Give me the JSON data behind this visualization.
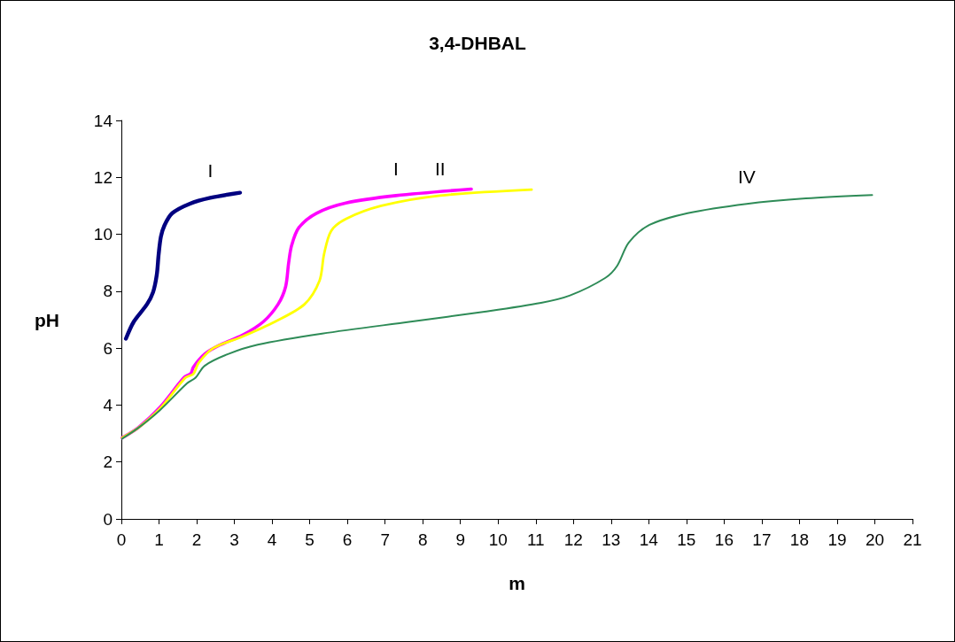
{
  "chart_data": {
    "type": "line",
    "title": "3,4-DHBAL",
    "xlabel": "m",
    "ylabel": "pH",
    "xlim": [
      0,
      21
    ],
    "xticks": [
      0,
      1,
      2,
      3,
      4,
      5,
      6,
      7,
      8,
      9,
      10,
      11,
      12,
      13,
      14,
      15,
      16,
      17,
      18,
      19,
      20,
      21
    ],
    "ylim": [
      0,
      14
    ],
    "yticks": [
      0,
      2,
      4,
      6,
      8,
      10,
      12,
      14
    ],
    "grid": false,
    "marker": "none",
    "line_style": "solid",
    "series": [
      {
        "name": "I",
        "color": "#000080",
        "x": [
          0.12,
          0.33,
          0.68,
          0.84,
          0.94,
          0.99,
          1.05,
          1.15,
          1.35,
          1.81,
          2.36,
          3.15
        ],
        "values": [
          6.33,
          6.93,
          7.54,
          7.96,
          8.58,
          9.3,
          9.92,
          10.33,
          10.74,
          11.07,
          11.28,
          11.46
        ]
      },
      {
        "name": "I",
        "color": "#ff00ff",
        "x": [
          0.02,
          0.45,
          1.03,
          1.66,
          1.85,
          1.91,
          2.21,
          2.6,
          3.22,
          3.77,
          4.16,
          4.36,
          4.44,
          4.52,
          4.71,
          5.18,
          5.96,
          7.29,
          9.29
        ],
        "values": [
          2.85,
          3.21,
          3.93,
          4.96,
          5.12,
          5.33,
          5.79,
          6.1,
          6.46,
          6.93,
          7.54,
          8.16,
          8.99,
          9.61,
          10.23,
          10.74,
          11.1,
          11.36,
          11.59
        ]
      },
      {
        "name": "II",
        "color": "#ffff00",
        "x": [
          0.02,
          0.45,
          1.03,
          1.7,
          1.91,
          2.05,
          2.44,
          3.22,
          4.08,
          4.86,
          5.26,
          5.38,
          5.57,
          5.96,
          6.9,
          8.46,
          10.89
        ],
        "values": [
          2.85,
          3.2,
          3.88,
          4.96,
          5.09,
          5.48,
          6.0,
          6.41,
          6.93,
          7.54,
          8.37,
          9.3,
          10.12,
          10.54,
          11.0,
          11.36,
          11.57
        ]
      },
      {
        "name": "IV",
        "color": "#2e8b57",
        "x": [
          0.02,
          0.45,
          1.03,
          1.74,
          1.97,
          2.21,
          2.83,
          3.62,
          5.33,
          7.68,
          9.64,
          11.14,
          11.91,
          12.85,
          13.16,
          13.47,
          14.02,
          15.03,
          16.6,
          18.17,
          19.93
        ],
        "values": [
          2.82,
          3.2,
          3.83,
          4.76,
          4.96,
          5.38,
          5.79,
          6.12,
          6.51,
          6.93,
          7.28,
          7.59,
          7.85,
          8.47,
          8.89,
          9.71,
          10.33,
          10.74,
          11.07,
          11.26,
          11.38
        ]
      }
    ]
  }
}
